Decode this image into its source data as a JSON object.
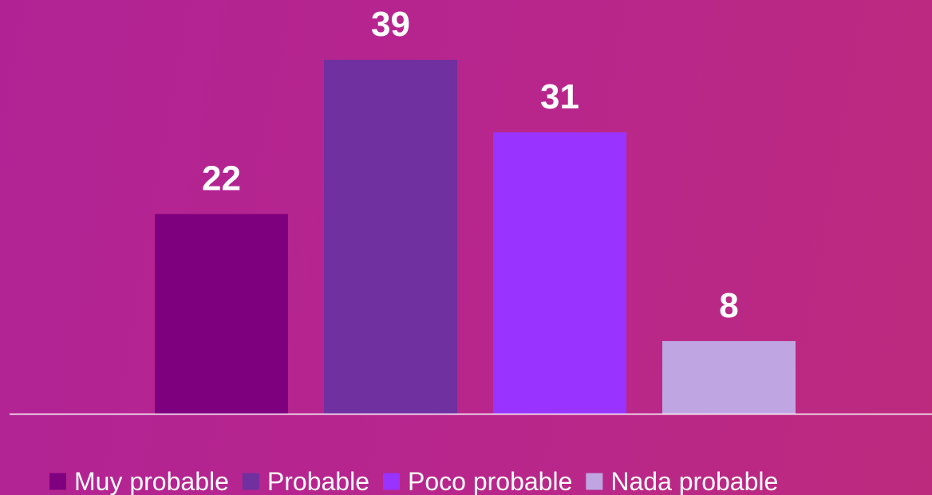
{
  "chart_data": {
    "type": "bar",
    "categories": [
      "Muy probable",
      "Probable",
      "Poco probable",
      "Nada probable"
    ],
    "values": [
      22,
      39,
      31,
      8
    ],
    "colors": [
      "#7f007f",
      "#7030a0",
      "#9933ff",
      "#bfa6e2"
    ],
    "data_labels": [
      "22",
      "39",
      "31",
      "8"
    ],
    "legend": {
      "position": "bottom",
      "items": [
        "Muy probable",
        "Probable",
        "Poco probable",
        "Nada probable"
      ]
    },
    "ylim": [
      0,
      39
    ],
    "grid": false,
    "title": "",
    "xlabel": "",
    "ylabel": ""
  },
  "colors": {
    "background": "#b8258c",
    "axis": "#ffffff",
    "text": "#ffffff"
  }
}
